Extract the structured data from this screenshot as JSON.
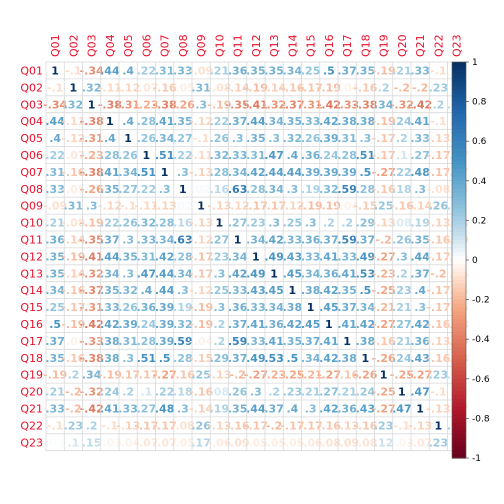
{
  "chart_data": {
    "type": "heatmap",
    "title": "",
    "variables": [
      "Q01",
      "Q02",
      "Q03",
      "Q04",
      "Q05",
      "Q06",
      "Q07",
      "Q08",
      "Q09",
      "Q10",
      "Q11",
      "Q12",
      "Q13",
      "Q14",
      "Q15",
      "Q16",
      "Q17",
      "Q18",
      "Q19",
      "Q20",
      "Q21",
      "Q22",
      "Q23"
    ],
    "matrix": [
      [
        1,
        -0.1,
        -0.34,
        0.44,
        0.4,
        0.22,
        0.31,
        0.33,
        -0.09,
        0.21,
        0.36,
        0.35,
        0.35,
        0.34,
        0.25,
        0.5,
        0.37,
        0.35,
        -0.19,
        0.21,
        0.33,
        -0.1,
        0.01
      ],
      [
        -0.1,
        1,
        0.32,
        -0.11,
        -0.12,
        -0.07,
        -0.16,
        -0.05,
        0.31,
        -0.08,
        -0.14,
        -0.19,
        -0.14,
        -0.16,
        -0.17,
        -0.19,
        -0.04,
        -0.16,
        0.2,
        -0.2,
        -0.2,
        0.23,
        0.1
      ],
      [
        -0.34,
        0.32,
        1,
        -0.38,
        -0.31,
        -0.23,
        -0.38,
        -0.26,
        0.3,
        -0.19,
        -0.35,
        -0.41,
        -0.32,
        -0.37,
        -0.31,
        -0.42,
        -0.33,
        -0.38,
        0.34,
        -0.32,
        -0.42,
        0.2,
        0.15
      ],
      [
        0.44,
        -0.11,
        -0.38,
        1,
        0.4,
        0.28,
        0.41,
        0.35,
        -0.12,
        0.22,
        0.37,
        0.44,
        0.34,
        0.35,
        0.33,
        0.42,
        0.38,
        0.38,
        -0.19,
        0.24,
        0.41,
        -0.1,
        -0.03
      ],
      [
        0.4,
        -0.12,
        -0.31,
        0.4,
        1,
        0.26,
        0.34,
        0.27,
        -0.1,
        0.26,
        0.3,
        0.35,
        0.3,
        0.32,
        0.26,
        0.39,
        0.31,
        0.3,
        -0.17,
        0.2,
        0.33,
        -0.13,
        -0.04
      ],
      [
        0.22,
        -0.07,
        -0.23,
        0.28,
        0.26,
        1,
        0.51,
        0.22,
        -0.11,
        0.32,
        0.33,
        0.31,
        0.47,
        0.4,
        0.36,
        0.24,
        0.28,
        0.51,
        -0.17,
        0.1,
        0.27,
        -0.17,
        -0.07
      ],
      [
        0.31,
        -0.16,
        -0.38,
        0.41,
        0.34,
        0.51,
        1,
        0.3,
        -0.13,
        0.28,
        0.34,
        0.42,
        0.44,
        0.44,
        0.39,
        0.39,
        0.39,
        0.5,
        -0.27,
        0.22,
        0.48,
        -0.17,
        -0.07
      ],
      [
        0.33,
        -0.05,
        -0.26,
        0.35,
        0.27,
        0.22,
        0.3,
        1,
        0.02,
        0.16,
        0.63,
        0.28,
        0.34,
        0.3,
        0.19,
        0.32,
        0.59,
        0.28,
        -0.16,
        0.18,
        0.3,
        -0.08,
        -0.05
      ],
      [
        -0.09,
        0.31,
        0.3,
        -0.12,
        -0.1,
        -0.11,
        -0.13,
        0.02,
        1,
        -0.13,
        -0.12,
        -0.17,
        -0.17,
        -0.12,
        -0.19,
        -0.19,
        -0.04,
        -0.15,
        0.25,
        -0.16,
        -0.14,
        0.26,
        0.17
      ],
      [
        0.21,
        -0.08,
        -0.19,
        0.22,
        0.26,
        0.32,
        0.28,
        0.16,
        -0.13,
        1,
        0.27,
        0.23,
        0.3,
        0.25,
        0.3,
        0.2,
        0.2,
        0.29,
        -0.13,
        0.08,
        0.19,
        -0.13,
        -0.06
      ],
      [
        0.36,
        -0.14,
        -0.35,
        0.37,
        0.3,
        0.33,
        0.34,
        0.63,
        -0.12,
        0.27,
        1,
        0.34,
        0.42,
        0.33,
        0.36,
        0.37,
        0.59,
        0.37,
        -0.2,
        0.26,
        0.35,
        -0.16,
        -0.09
      ],
      [
        0.35,
        -0.19,
        -0.41,
        0.44,
        0.35,
        0.31,
        0.42,
        0.28,
        -0.17,
        0.23,
        0.34,
        1,
        0.49,
        0.43,
        0.33,
        0.41,
        0.33,
        0.49,
        -0.27,
        0.3,
        0.44,
        -0.17,
        -0.05
      ],
      [
        0.35,
        -0.14,
        -0.32,
        0.34,
        0.3,
        0.47,
        0.44,
        0.34,
        -0.17,
        0.3,
        0.42,
        0.49,
        1,
        0.45,
        0.34,
        0.36,
        0.41,
        0.53,
        -0.23,
        0.2,
        0.37,
        -0.2,
        -0.05
      ],
      [
        0.34,
        -0.16,
        -0.37,
        0.35,
        0.32,
        0.4,
        0.44,
        0.3,
        -0.12,
        0.25,
        0.33,
        0.43,
        0.45,
        1,
        0.38,
        0.42,
        0.35,
        0.5,
        -0.25,
        0.23,
        0.4,
        -0.17,
        -0.05
      ],
      [
        0.25,
        -0.17,
        -0.31,
        0.33,
        0.26,
        0.36,
        0.39,
        0.19,
        -0.19,
        0.3,
        0.36,
        0.33,
        0.34,
        0.38,
        1,
        0.45,
        0.37,
        0.34,
        -0.21,
        0.21,
        0.3,
        -0.17,
        -0.06
      ],
      [
        0.5,
        -0.19,
        -0.42,
        0.42,
        0.39,
        0.24,
        0.39,
        0.32,
        -0.19,
        0.2,
        0.37,
        0.41,
        0.36,
        0.42,
        0.45,
        1,
        0.41,
        0.42,
        -0.27,
        0.27,
        0.42,
        -0.16,
        -0.08
      ],
      [
        0.37,
        -0.04,
        -0.33,
        0.38,
        0.31,
        0.28,
        0.39,
        0.59,
        -0.04,
        0.2,
        0.59,
        0.33,
        0.41,
        0.35,
        0.37,
        0.41,
        1,
        0.38,
        -0.16,
        0.21,
        0.36,
        -0.13,
        -0.09
      ],
      [
        0.35,
        -0.16,
        -0.38,
        0.38,
        0.3,
        0.51,
        0.5,
        0.28,
        -0.15,
        0.29,
        0.37,
        0.49,
        0.53,
        0.5,
        0.34,
        0.42,
        0.38,
        1,
        -0.26,
        0.24,
        0.43,
        -0.16,
        -0.08
      ],
      [
        -0.19,
        0.2,
        0.34,
        -0.19,
        -0.17,
        -0.17,
        -0.27,
        -0.16,
        0.25,
        -0.13,
        -0.2,
        -0.27,
        -0.23,
        -0.25,
        -0.21,
        -0.27,
        -0.16,
        -0.26,
        1,
        -0.25,
        -0.27,
        0.23,
        0.12
      ],
      [
        0.21,
        -0.2,
        -0.32,
        0.24,
        0.2,
        0.1,
        0.22,
        0.18,
        -0.16,
        0.08,
        0.26,
        0.3,
        0.2,
        0.23,
        0.21,
        0.27,
        0.21,
        0.24,
        -0.25,
        1,
        0.47,
        -0.1,
        -0.03
      ],
      [
        0.33,
        -0.2,
        -0.42,
        0.41,
        0.33,
        0.27,
        0.48,
        0.3,
        -0.14,
        0.19,
        0.35,
        0.44,
        0.37,
        0.4,
        0.3,
        0.42,
        0.36,
        0.43,
        -0.27,
        0.47,
        1,
        -0.13,
        -0.07
      ],
      [
        -0.1,
        0.23,
        0.2,
        -0.1,
        -0.13,
        -0.17,
        -0.17,
        -0.08,
        0.26,
        -0.13,
        -0.16,
        -0.17,
        -0.2,
        -0.17,
        -0.17,
        -0.16,
        -0.13,
        -0.16,
        0.23,
        -0.1,
        -0.13,
        1,
        0.23
      ],
      [
        0.01,
        0.1,
        0.15,
        -0.03,
        -0.04,
        -0.07,
        -0.07,
        -0.05,
        0.17,
        -0.06,
        -0.09,
        -0.05,
        -0.05,
        -0.05,
        -0.06,
        -0.08,
        -0.09,
        -0.08,
        0.12,
        -0.03,
        -0.07,
        0.23,
        1
      ]
    ],
    "value_range": [
      -1,
      1
    ],
    "grid": true,
    "colorbar": {
      "position": "right",
      "ticks": [
        "1",
        "0.8",
        "0.6",
        "0.4",
        "0.2",
        "0",
        "-0.2",
        "-0.4",
        "-0.6",
        "-0.8",
        "-1"
      ],
      "tick_values": [
        1,
        0.8,
        0.6,
        0.4,
        0.2,
        0,
        -0.2,
        -0.4,
        -0.6,
        -0.8,
        -1
      ]
    },
    "colors": {
      "label": "#e8102a",
      "grid": "#d9d9d9",
      "strong_negative": "#67001f",
      "neutral": "#ffffff",
      "strong_positive": "#053061"
    }
  }
}
